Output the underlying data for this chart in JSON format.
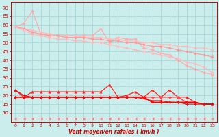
{
  "x": [
    0,
    1,
    2,
    3,
    4,
    5,
    6,
    7,
    8,
    9,
    10,
    11,
    12,
    13,
    14,
    15,
    16,
    17,
    18,
    19,
    20,
    21,
    22,
    23
  ],
  "series": {
    "s1_spike": [
      59,
      61,
      68,
      55,
      55,
      54,
      54,
      54,
      54,
      54,
      58,
      50,
      53,
      52,
      52,
      47,
      46,
      44,
      43,
      40,
      37,
      35,
      33,
      32
    ],
    "s2_main": [
      59,
      58,
      57,
      56,
      55,
      54,
      54,
      54,
      53,
      53,
      53,
      52,
      52,
      51,
      51,
      50,
      50,
      49,
      49,
      48,
      48,
      47,
      47,
      46
    ],
    "s3_lower": [
      59,
      58,
      56,
      55,
      54,
      54,
      53,
      53,
      53,
      52,
      52,
      51,
      51,
      50,
      50,
      49,
      48,
      48,
      47,
      46,
      45,
      44,
      43,
      42
    ],
    "s4_lowest": [
      59,
      57,
      55,
      54,
      53,
      52,
      52,
      51,
      51,
      50,
      50,
      49,
      48,
      47,
      46,
      45,
      44,
      43,
      42,
      41,
      39,
      38,
      36,
      33
    ],
    "m1_spike": [
      23,
      19,
      22,
      22,
      22,
      22,
      22,
      22,
      22,
      22,
      22,
      26,
      19,
      20,
      22,
      19,
      23,
      19,
      23,
      19,
      19,
      16,
      15,
      15
    ],
    "m2_flat": [
      19,
      19,
      19,
      19,
      19,
      19,
      19,
      19,
      19,
      19,
      19,
      19,
      19,
      19,
      19,
      19,
      19,
      19,
      19,
      19,
      16,
      16,
      15,
      15
    ],
    "m3_flat": [
      19,
      19,
      19,
      19,
      19,
      19,
      19,
      19,
      19,
      19,
      19,
      19,
      19,
      19,
      19,
      19,
      16,
      16,
      16,
      16,
      16,
      16,
      15,
      15
    ],
    "m4_decline": [
      23,
      20,
      19,
      19,
      19,
      19,
      19,
      19,
      19,
      19,
      19,
      19,
      19,
      19,
      19,
      18,
      17,
      17,
      16,
      16,
      15,
      15,
      15,
      15
    ],
    "dashed_bot": [
      7,
      7,
      7,
      7,
      7,
      7,
      7,
      7,
      7,
      7,
      7,
      7,
      7,
      7,
      7,
      7,
      7,
      7,
      7,
      7,
      7,
      7,
      7,
      7
    ]
  },
  "bg_color": "#cbeeed",
  "grid_color": "#a8d8d8",
  "xlabel": "Vent moyen/en rafales ( km/h )",
  "yticks": [
    10,
    15,
    20,
    25,
    30,
    35,
    40,
    45,
    50,
    55,
    60,
    65,
    70
  ],
  "ylim": [
    5,
    73
  ],
  "xlim": [
    -0.5,
    23.5
  ]
}
